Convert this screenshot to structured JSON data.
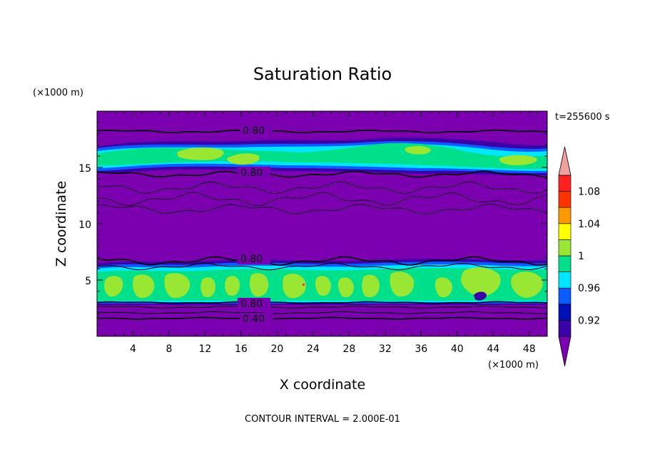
{
  "chart_data": {
    "type": "contour",
    "title": "Saturation Ratio",
    "xlabel": "X coordinate",
    "ylabel": "Z coordinate",
    "x_unit": "(×1000 m)",
    "y_unit": "(×1000 m)",
    "time_label": "t=255600 s",
    "footer": "CONTOUR INTERVAL = 2.000E-01",
    "xlim": [
      0,
      50
    ],
    "ylim": [
      0,
      20
    ],
    "x_ticks": [
      "4",
      "8",
      "12",
      "16",
      "20",
      "24",
      "28",
      "32",
      "36",
      "40",
      "44",
      "48"
    ],
    "y_ticks": [
      "5",
      "10",
      "15"
    ],
    "contour_labels": [
      "0.80",
      "0.80",
      "0.80",
      "0.80",
      "0.40"
    ],
    "colorbar": {
      "tick_labels": [
        "0.92",
        "0.96",
        "1",
        "1.04",
        "1.08"
      ],
      "levels": [
        0.92,
        0.94,
        0.96,
        0.98,
        1.0,
        1.02,
        1.04,
        1.06,
        1.08,
        1.1
      ],
      "colors": [
        "#7b00b0",
        "#3b00a8",
        "#0010b8",
        "#0a5cff",
        "#00e6ff",
        "#00e08a",
        "#99e633",
        "#ffff00",
        "#ff9900",
        "#ff3300",
        "#ff2020",
        "#f0a0a0"
      ]
    },
    "layers": {
      "background": "#7b00b0",
      "cloud_bands": [
        {
          "name": "upper",
          "z_bottom": 14.6,
          "z_top": 17.3
        },
        {
          "name": "lower",
          "z_bottom": 3.0,
          "z_top": 6.3
        }
      ]
    }
  }
}
